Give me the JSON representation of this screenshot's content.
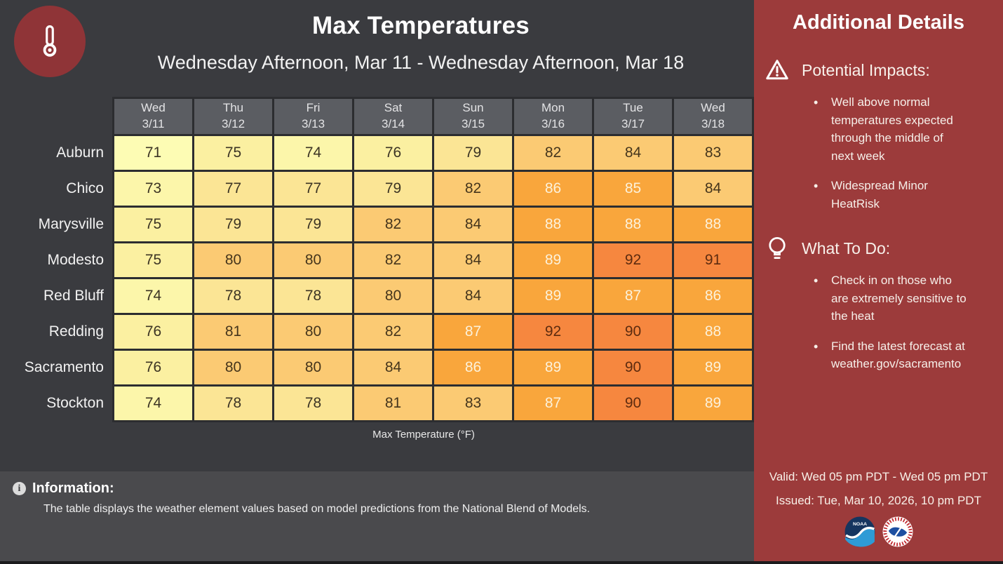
{
  "chart_data": {
    "type": "heatmap",
    "title": "Max Temperatures",
    "subtitle": "Wednesday Afternoon, Mar 11 - Wednesday Afternoon, Mar 18",
    "caption": "Max Temperature (°F)",
    "unit": "°F",
    "columns": [
      {
        "day": "Wed",
        "date": "3/11"
      },
      {
        "day": "Thu",
        "date": "3/12"
      },
      {
        "day": "Fri",
        "date": "3/13"
      },
      {
        "day": "Sat",
        "date": "3/14"
      },
      {
        "day": "Sun",
        "date": "3/15"
      },
      {
        "day": "Mon",
        "date": "3/16"
      },
      {
        "day": "Tue",
        "date": "3/17"
      },
      {
        "day": "Wed",
        "date": "3/18"
      }
    ],
    "rows": [
      "Auburn",
      "Chico",
      "Marysville",
      "Modesto",
      "Red Bluff",
      "Redding",
      "Sacramento",
      "Stockton"
    ],
    "values": [
      [
        71,
        75,
        74,
        76,
        79,
        82,
        84,
        83
      ],
      [
        73,
        77,
        77,
        79,
        82,
        86,
        85,
        84
      ],
      [
        75,
        79,
        79,
        82,
        84,
        88,
        88,
        88
      ],
      [
        75,
        80,
        80,
        82,
        84,
        89,
        92,
        91
      ],
      [
        74,
        78,
        78,
        80,
        84,
        89,
        87,
        86
      ],
      [
        76,
        81,
        80,
        82,
        87,
        92,
        90,
        88
      ],
      [
        76,
        80,
        80,
        84,
        86,
        89,
        90,
        89
      ],
      [
        74,
        78,
        78,
        81,
        83,
        87,
        90,
        89
      ]
    ],
    "color_bins": [
      {
        "max": 72,
        "bg": "#FDFCB4",
        "fg": "#3C3424"
      },
      {
        "max": 74,
        "bg": "#FCF6AA",
        "fg": "#3C3424"
      },
      {
        "max": 76,
        "bg": "#FBF0A1",
        "fg": "#3C3424"
      },
      {
        "max": 79,
        "bg": "#FBE595",
        "fg": "#3C3424"
      },
      {
        "max": 84,
        "bg": "#FBCA73",
        "fg": "#45351C"
      },
      {
        "max": 89,
        "bg": "#F9A63C",
        "fg": "#FCF1DA"
      },
      {
        "max": 200,
        "bg": "#F6873F",
        "fg": "#5D2B0F"
      }
    ],
    "legend_position": "none",
    "grid": true
  },
  "header": {
    "title": "Max Temperatures",
    "subtitle": "Wednesday Afternoon, Mar 11 - Wednesday Afternoon, Mar 18"
  },
  "sidebar": {
    "title": "Additional Details",
    "background_color": "#9C3B3B",
    "sections": [
      {
        "icon": "warning-icon",
        "heading": "Potential Impacts:",
        "bullets": [
          "Well above normal\ntemperatures expected\nthrough the middle of\nnext week",
          "Widespread Minor\nHeatRisk"
        ]
      },
      {
        "icon": "lightbulb-icon",
        "heading": "What To Do:",
        "bullets": [
          "Check in on those who\nare extremely sensitive to\nthe heat",
          "Find the latest forecast at\nweather.gov/sacramento"
        ]
      }
    ],
    "valid": "Valid: Wed 05 pm PDT - Wed 05 pm PDT",
    "issued": "Issued: Tue, Mar 10, 2026, 10 pm PDT",
    "logos": [
      {
        "name": "noaa-logo",
        "label": "NOAA"
      },
      {
        "name": "nws-logo",
        "label": ""
      }
    ]
  },
  "footer": {
    "heading": "Information:",
    "info_icon_glyph": "i",
    "text": "The table displays the weather element values based on model predictions from the National Blend of Models."
  },
  "icons": {
    "thermometer-icon": "white outline thermometer in dark red circle",
    "warning-icon": "white outline rounded triangle with exclamation mark",
    "lightbulb-icon": "white outline light bulb",
    "info-icon": "light circle with dark letter i",
    "noaa-logo": "blue circle, white seagull wave, NOAA text",
    "nws-logo": "white circle, red ring text, blue map shape"
  }
}
